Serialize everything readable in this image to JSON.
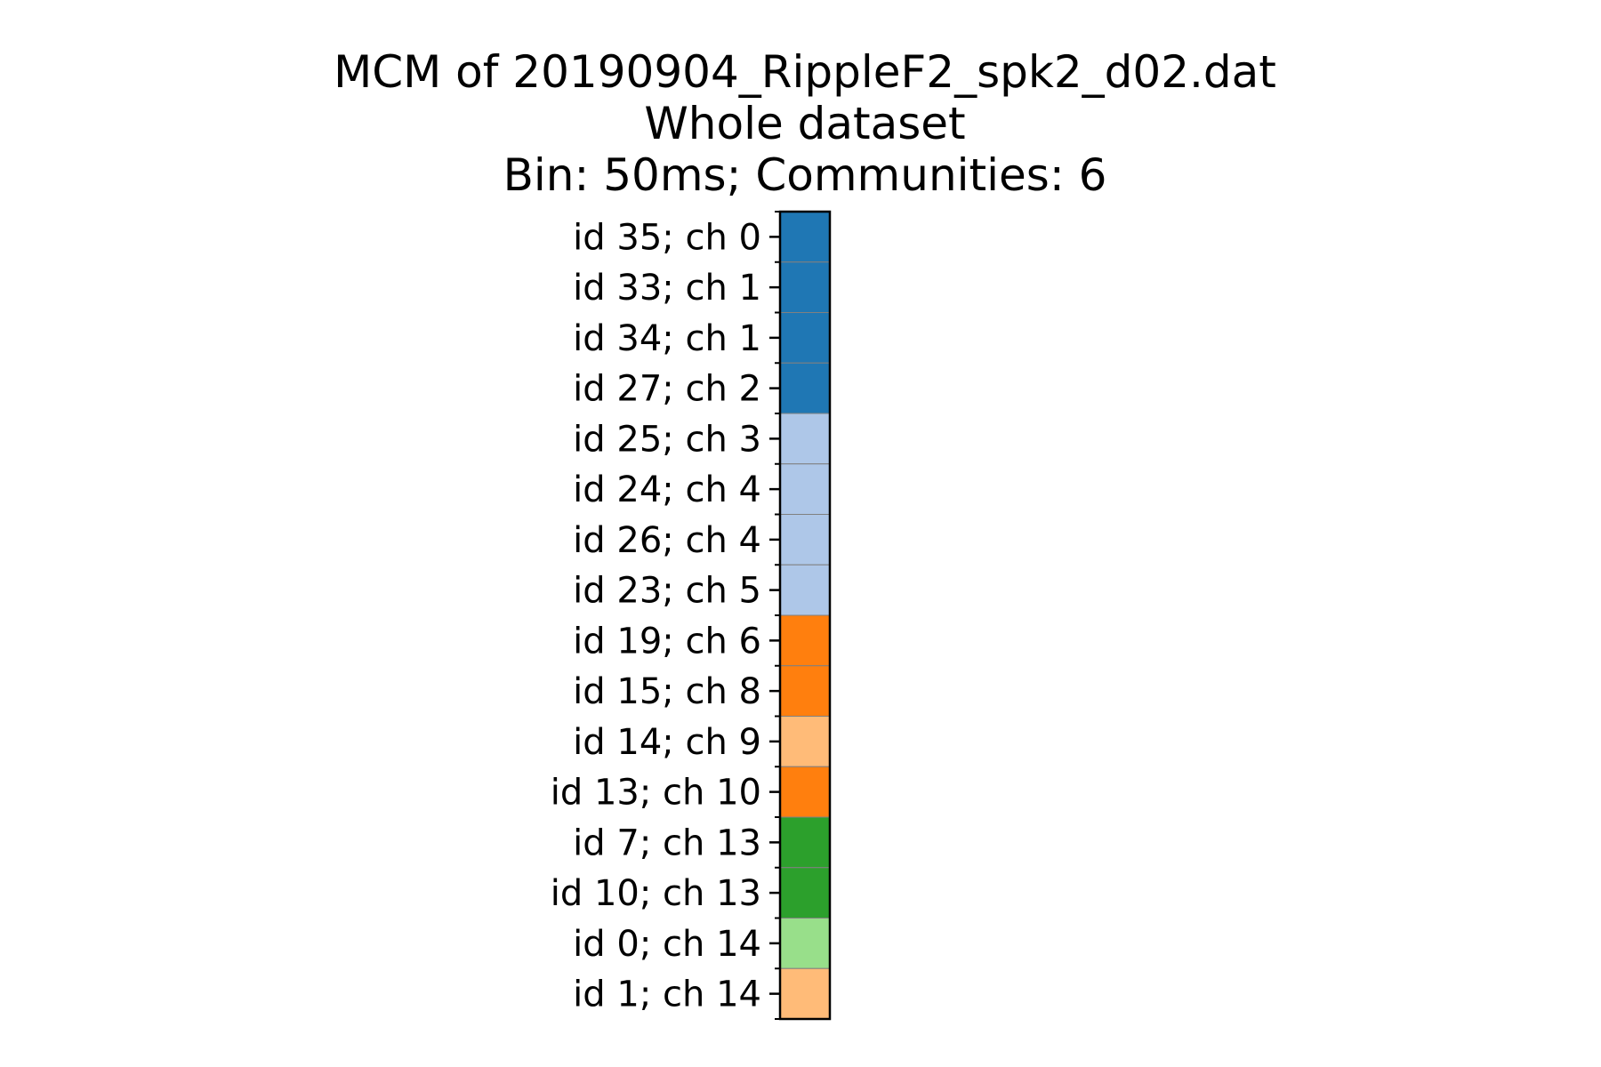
{
  "chart_data": {
    "type": "heatmap",
    "title_lines": [
      "MCM of 20190904_RippleF2_spk2_d02.dat",
      "Whole dataset",
      "Bin: 50ms; Communities: 6"
    ],
    "rows": [
      {
        "label": "id 35; ch 0",
        "community": 0
      },
      {
        "label": "id 33; ch 1",
        "community": 0
      },
      {
        "label": "id 34; ch 1",
        "community": 0
      },
      {
        "label": "id 27; ch 2",
        "community": 0
      },
      {
        "label": "id 25; ch 3",
        "community": 1
      },
      {
        "label": "id 24; ch 4",
        "community": 1
      },
      {
        "label": "id 26; ch 4",
        "community": 1
      },
      {
        "label": "id 23; ch 5",
        "community": 1
      },
      {
        "label": "id 19; ch 6",
        "community": 2
      },
      {
        "label": "id 15; ch 8",
        "community": 2
      },
      {
        "label": "id 14; ch 9",
        "community": 3
      },
      {
        "label": "id 13; ch 10",
        "community": 2
      },
      {
        "label": "id 7; ch 13",
        "community": 4
      },
      {
        "label": "id 10; ch 13",
        "community": 4
      },
      {
        "label": "id 0; ch 14",
        "community": 5
      },
      {
        "label": "id 1; ch 14",
        "community": 3
      }
    ],
    "community_colors": [
      "#1f77b4",
      "#aec7e8",
      "#ff7f0e",
      "#ffbb78",
      "#2ca02c",
      "#98df8a"
    ],
    "cell_border_color": "#808080",
    "legend": false,
    "grid": false
  }
}
